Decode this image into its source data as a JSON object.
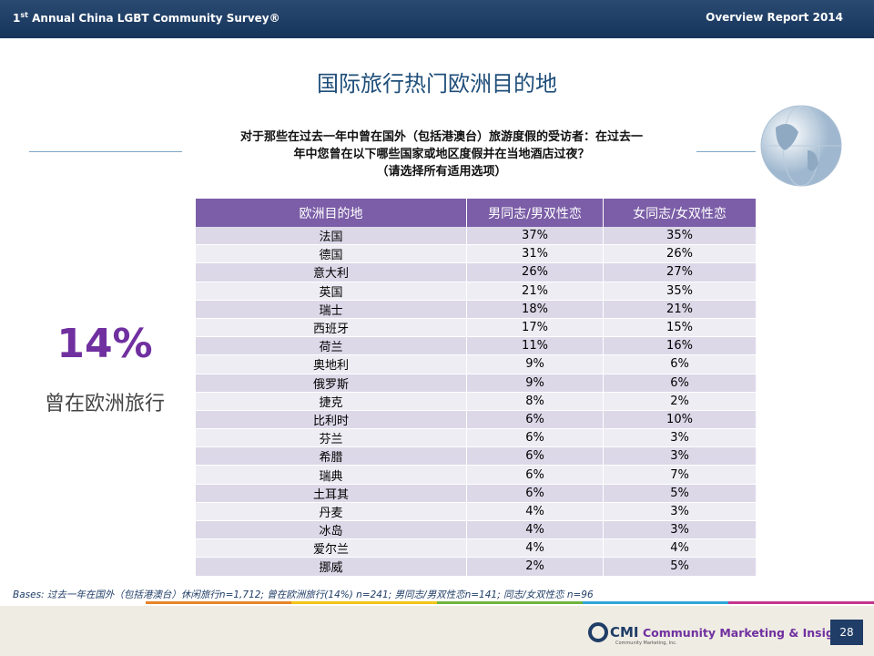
{
  "header": {
    "left_number": "1",
    "left_superscript": "st",
    "left_rest": " Annual China LGBT Community Survey®",
    "right": "Overview Report 2014"
  },
  "title": "国际旅行热门欧洲目的地",
  "question": [
    "对于那些在过去一年中曾在国外（包括港澳台）旅游度假的受访者：在过去一",
    "年中您曾在以下哪些国家或地区度假并在当地酒店过夜？",
    "（请选择所有适用选项）"
  ],
  "highlight": {
    "value": "14%",
    "caption": "曾在欧洲旅行"
  },
  "table": {
    "columns": [
      "欧洲目的地",
      "男同志/男双性恋",
      "女同志/女双性恋"
    ],
    "rows": [
      [
        "法国",
        "37%",
        "35%"
      ],
      [
        "德国",
        "31%",
        "26%"
      ],
      [
        "意大利",
        "26%",
        "27%"
      ],
      [
        "英国",
        "21%",
        "35%"
      ],
      [
        "瑞士",
        "18%",
        "21%"
      ],
      [
        "西班牙",
        "17%",
        "15%"
      ],
      [
        "荷兰",
        "11%",
        "16%"
      ],
      [
        "奥地利",
        "9%",
        "6%"
      ],
      [
        "俄罗斯",
        "9%",
        "6%"
      ],
      [
        "捷克",
        "8%",
        "2%"
      ],
      [
        "比利时",
        "6%",
        "10%"
      ],
      [
        "芬兰",
        "6%",
        "3%"
      ],
      [
        "希腊",
        "6%",
        "3%"
      ],
      [
        "瑞典",
        "6%",
        "7%"
      ],
      [
        "土耳其",
        "6%",
        "5%"
      ],
      [
        "丹麦",
        "4%",
        "3%"
      ],
      [
        "冰岛",
        "4%",
        "3%"
      ],
      [
        "爱尔兰",
        "4%",
        "4%"
      ],
      [
        "挪威",
        "2%",
        "5%"
      ]
    ]
  },
  "bases": "Bases: 过去一年在国外（包括港澳台）休闲旅行n=1,712; 曾在欧洲旅行(14%) n=241; 男同志/男双性恋n=141; 同志/女双性恋 n=96",
  "footer": {
    "logo": "CMI",
    "company": "Community Marketing & Insights",
    "company_small": "Community Marketing, Inc.",
    "page": "28"
  }
}
